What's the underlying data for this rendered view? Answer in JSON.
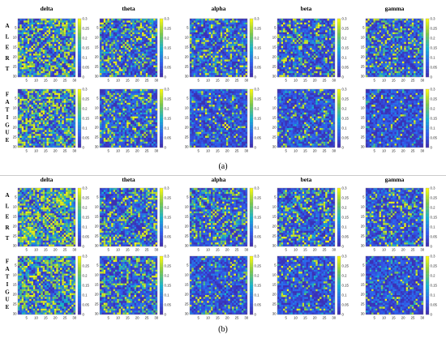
{
  "chart_data": {
    "type": "heatmap",
    "panels": [
      {
        "label": "(a)",
        "rows": [
          "ALERT",
          "FATIGUE"
        ]
      },
      {
        "label": "(b)",
        "rows": [
          "ALERT",
          "FATIGUE"
        ]
      }
    ],
    "bands": [
      "delta",
      "theta",
      "alpha",
      "beta",
      "gamma"
    ],
    "matrix_size": 30,
    "x_ticks": [
      "5",
      "10",
      "15",
      "20",
      "25",
      "30"
    ],
    "y_ticks": [
      "5",
      "10",
      "15",
      "20",
      "25",
      "30"
    ],
    "colorbar": {
      "range": [
        0,
        0.3
      ],
      "ticks": [
        "0.3",
        "0.25",
        "0.2",
        "0.15",
        "0.1",
        "0.05",
        "0"
      ],
      "colormap": "parula"
    },
    "colors": {
      "low": "#3e26a8",
      "mid_low": "#2f5ff0",
      "mid": "#13b4d0",
      "mid_high": "#7dc94a",
      "high": "#f9fb0e"
    }
  }
}
